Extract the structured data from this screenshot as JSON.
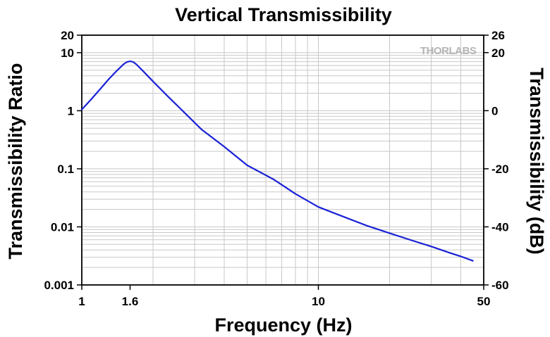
{
  "chart_data": {
    "type": "line",
    "title": "Vertical Transmissibility",
    "xlabel": "Frequency (Hz)",
    "ylabel": "Transmissibility Ratio",
    "y2label": "Transmissibility (dB)",
    "x_scale": "log",
    "y_scale": "log",
    "xlim": [
      1,
      50
    ],
    "ylim": [
      0.001,
      20
    ],
    "y2lim": [
      -60,
      26
    ],
    "grid": true,
    "x_ticks": [
      {
        "value": 1,
        "label": "1"
      },
      {
        "value": 1.6,
        "label": "1.6"
      },
      {
        "value": 10,
        "label": "10"
      },
      {
        "value": 50,
        "label": "50"
      }
    ],
    "y_ticks": [
      {
        "value": 0.001,
        "label": "0.001"
      },
      {
        "value": 0.01,
        "label": "0.01"
      },
      {
        "value": 0.1,
        "label": "0.1"
      },
      {
        "value": 1,
        "label": "1"
      },
      {
        "value": 10,
        "label": "10"
      },
      {
        "value": 20,
        "label": "20"
      }
    ],
    "y2_ticks": [
      {
        "value": -60,
        "label": "-60"
      },
      {
        "value": -40,
        "label": "-40"
      },
      {
        "value": -20,
        "label": "-20"
      },
      {
        "value": 0,
        "label": "0"
      },
      {
        "value": 20,
        "label": "20"
      },
      {
        "value": 26,
        "label": "26"
      }
    ],
    "series": [
      {
        "color": "#1a22d6",
        "x": [
          1.0,
          1.1,
          1.2,
          1.3,
          1.4,
          1.5,
          1.55,
          1.6,
          1.65,
          1.7,
          1.8,
          2.0,
          2.3,
          2.7,
          3.2,
          4.0,
          5.0,
          6.5,
          8.0,
          10.0,
          12.5,
          16.0,
          20.0,
          25.0,
          30.0,
          35.0,
          40.0,
          45.0
        ],
        "y": [
          1.05,
          1.6,
          2.4,
          3.5,
          4.8,
          6.3,
          6.9,
          7.1,
          6.9,
          6.3,
          5.0,
          3.2,
          1.8,
          0.95,
          0.48,
          0.24,
          0.115,
          0.065,
          0.037,
          0.022,
          0.0155,
          0.0105,
          0.0078,
          0.0058,
          0.0046,
          0.0037,
          0.0031,
          0.0026
        ]
      }
    ]
  },
  "watermark": "THORLABS"
}
